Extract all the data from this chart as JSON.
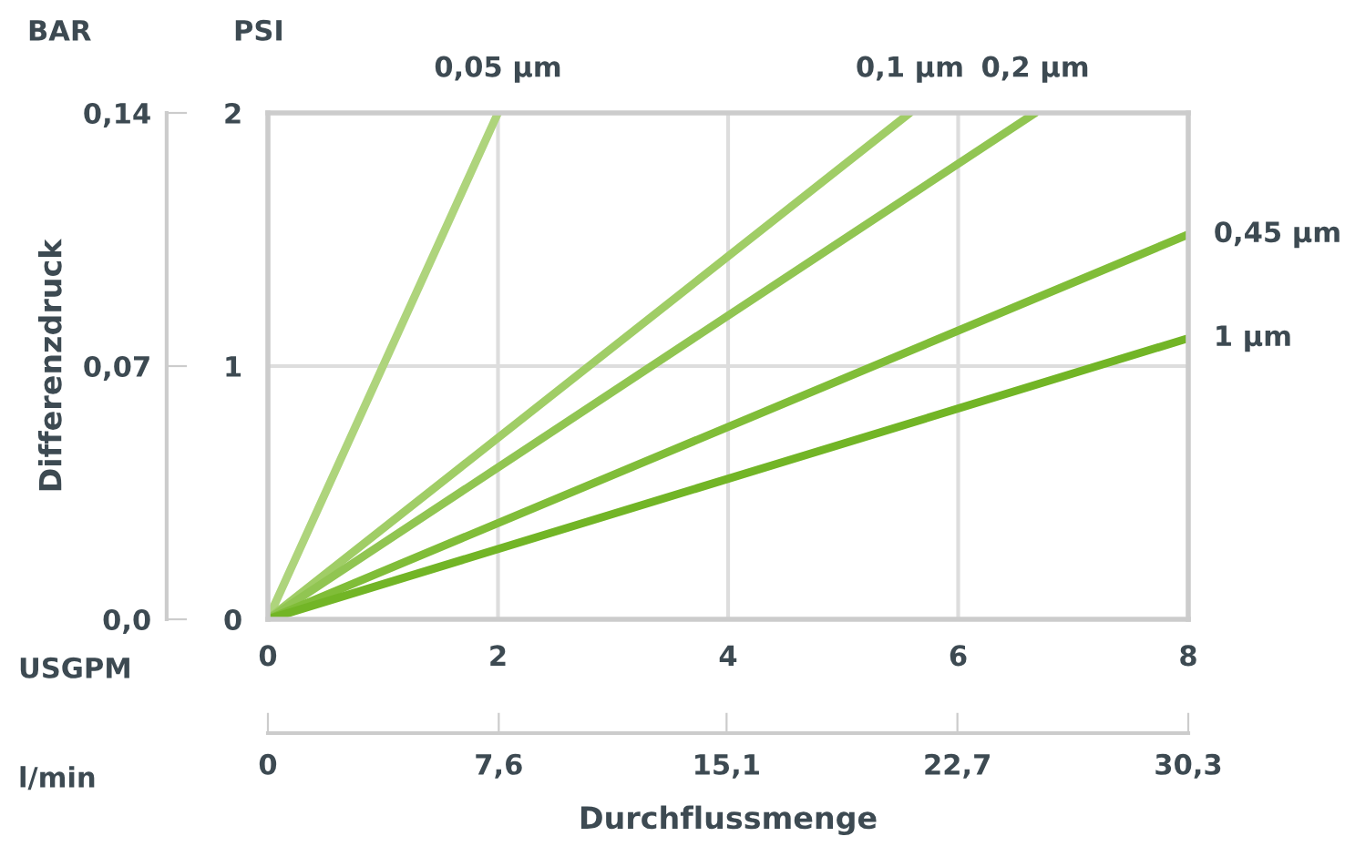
{
  "chart_data": {
    "type": "line",
    "xlabel": "Durchflussmenge",
    "y2label": "Differenzdruck",
    "annotations": [
      "BAR",
      "PSI",
      "USGPM",
      "l/min"
    ],
    "xlim": [
      0,
      8
    ],
    "xticks": [
      0,
      2,
      4,
      6,
      8
    ],
    "x2lim": [
      0,
      30.3
    ],
    "x2ticks": [
      0,
      {
        "value": 7.6,
        "label": "7,6"
      },
      {
        "value": 15.1,
        "label": "15,1"
      },
      {
        "value": 22.7,
        "label": "22,7"
      },
      {
        "value": 30.3,
        "label": "30,3"
      }
    ],
    "ylim": [
      0,
      2
    ],
    "yticks": [
      0,
      1,
      2
    ],
    "y2lim": [
      0,
      0.14
    ],
    "y2ticks": [
      {
        "value": 0,
        "label": "0,0"
      },
      {
        "value": 0.07,
        "label": "0,07"
      },
      {
        "value": 0.14,
        "label": "0,14"
      }
    ],
    "grid": true,
    "marker": "none",
    "line_style": "solid",
    "series": [
      {
        "name": "0,05 µm",
        "color": "#aed47c",
        "x": [
          0,
          2.0
        ],
        "values": [
          0,
          2
        ]
      },
      {
        "name": "0,1 µm",
        "color": "#a0cd66",
        "x": [
          0,
          5.58
        ],
        "values": [
          0,
          2
        ]
      },
      {
        "name": "0,2 µm",
        "color": "#91c552",
        "x": [
          0,
          6.67
        ],
        "values": [
          0,
          2
        ]
      },
      {
        "name": "0,45 µm",
        "color": "#80bd38",
        "x": [
          0,
          8
        ],
        "values": [
          0,
          1.52
        ]
      },
      {
        "name": "1 µm",
        "color": "#72b526",
        "x": [
          0,
          8
        ],
        "values": [
          0,
          1.11
        ]
      }
    ]
  }
}
